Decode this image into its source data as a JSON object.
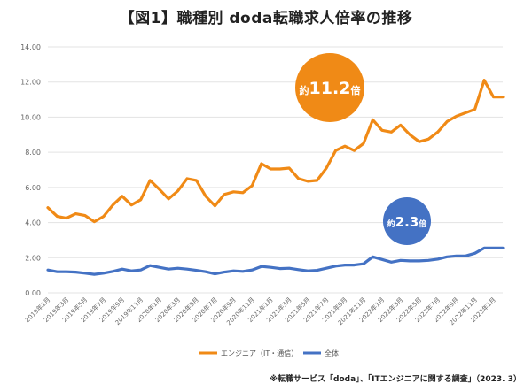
{
  "title": "【図1】職種別 doda転職求人倍率の推移",
  "source_note": "※転職サービス「doda」、「ITエンジニアに関する調査」（2023. 3）",
  "colors": {
    "engineer": "#F08A16",
    "all": "#4472C4",
    "grid": "#e3e3e3"
  },
  "chart_data": {
    "type": "line",
    "title": "【図1】職種別 doda転職求人倍率の推移",
    "ylim": [
      0,
      14
    ],
    "yticks": [
      "0.00",
      "2.00",
      "4.00",
      "6.00",
      "8.00",
      "10.00",
      "12.00",
      "14.00"
    ],
    "grid": true,
    "legend_position": "bottom",
    "x": [
      "2019年1月",
      "2019年2月",
      "2019年3月",
      "2019年4月",
      "2019年5月",
      "2019年6月",
      "2019年7月",
      "2019年8月",
      "2019年9月",
      "2019年10月",
      "2019年11月",
      "2019年12月",
      "2020年1月",
      "2020年2月",
      "2020年3月",
      "2020年4月",
      "2020年5月",
      "2020年6月",
      "2020年7月",
      "2020年8月",
      "2020年9月",
      "2020年10月",
      "2020年11月",
      "2020年12月",
      "2021年1月",
      "2021年2月",
      "2021年3月",
      "2021年4月",
      "2021年5月",
      "2021年6月",
      "2021年7月",
      "2021年8月",
      "2021年9月",
      "2021年10月",
      "2021年11月",
      "2021年12月",
      "2022年1月",
      "2022年2月",
      "2022年3月",
      "2022年4月",
      "2022年5月",
      "2022年6月",
      "2022年7月",
      "2022年8月",
      "2022年9月",
      "2022年10月",
      "2022年11月",
      "2022年12月",
      "2023年1月",
      "2023年2月"
    ],
    "xtick_labels": [
      "2019年1月",
      "2019年3月",
      "2019年5月",
      "2019年7月",
      "2019年9月",
      "2019年11月",
      "2020年1月",
      "2020年3月",
      "2020年5月",
      "2020年7月",
      "2020年9月",
      "2020年11月",
      "2021年1月",
      "2021年3月",
      "2021年5月",
      "2021年7月",
      "2021年9月",
      "2021年11月",
      "2022年1月",
      "2022年3月",
      "2022年5月",
      "2022年7月",
      "2022年9月",
      "2022年11月",
      "2023年1月"
    ],
    "series": [
      {
        "name": "エンジニア（IT・通信）",
        "values": [
          4.85,
          4.35,
          4.25,
          4.5,
          4.4,
          4.05,
          4.35,
          5.0,
          5.5,
          5.0,
          5.3,
          6.4,
          5.9,
          5.35,
          5.8,
          6.5,
          6.4,
          5.5,
          4.95,
          5.6,
          5.75,
          5.7,
          6.1,
          7.35,
          7.05,
          7.05,
          7.1,
          6.5,
          6.35,
          6.4,
          7.1,
          8.1,
          8.35,
          8.1,
          8.5,
          9.85,
          9.25,
          9.15,
          9.55,
          9.0,
          8.6,
          8.75,
          9.15,
          9.75,
          10.05,
          10.25,
          10.45,
          12.1,
          11.15,
          11.15
        ]
      },
      {
        "name": "全体",
        "values": [
          1.3,
          1.2,
          1.2,
          1.18,
          1.12,
          1.05,
          1.12,
          1.22,
          1.35,
          1.25,
          1.3,
          1.55,
          1.45,
          1.35,
          1.4,
          1.35,
          1.28,
          1.2,
          1.08,
          1.18,
          1.25,
          1.22,
          1.3,
          1.5,
          1.45,
          1.38,
          1.4,
          1.32,
          1.25,
          1.28,
          1.4,
          1.52,
          1.58,
          1.58,
          1.65,
          2.05,
          1.9,
          1.75,
          1.85,
          1.82,
          1.82,
          1.85,
          1.92,
          2.05,
          2.1,
          2.1,
          2.25,
          2.55,
          2.55,
          2.55
        ]
      }
    ],
    "annotations": [
      {
        "prefix": "約",
        "value": "11.2",
        "suffix": "倍"
      },
      {
        "prefix": "約",
        "value": "2.3",
        "suffix": "倍"
      }
    ]
  }
}
